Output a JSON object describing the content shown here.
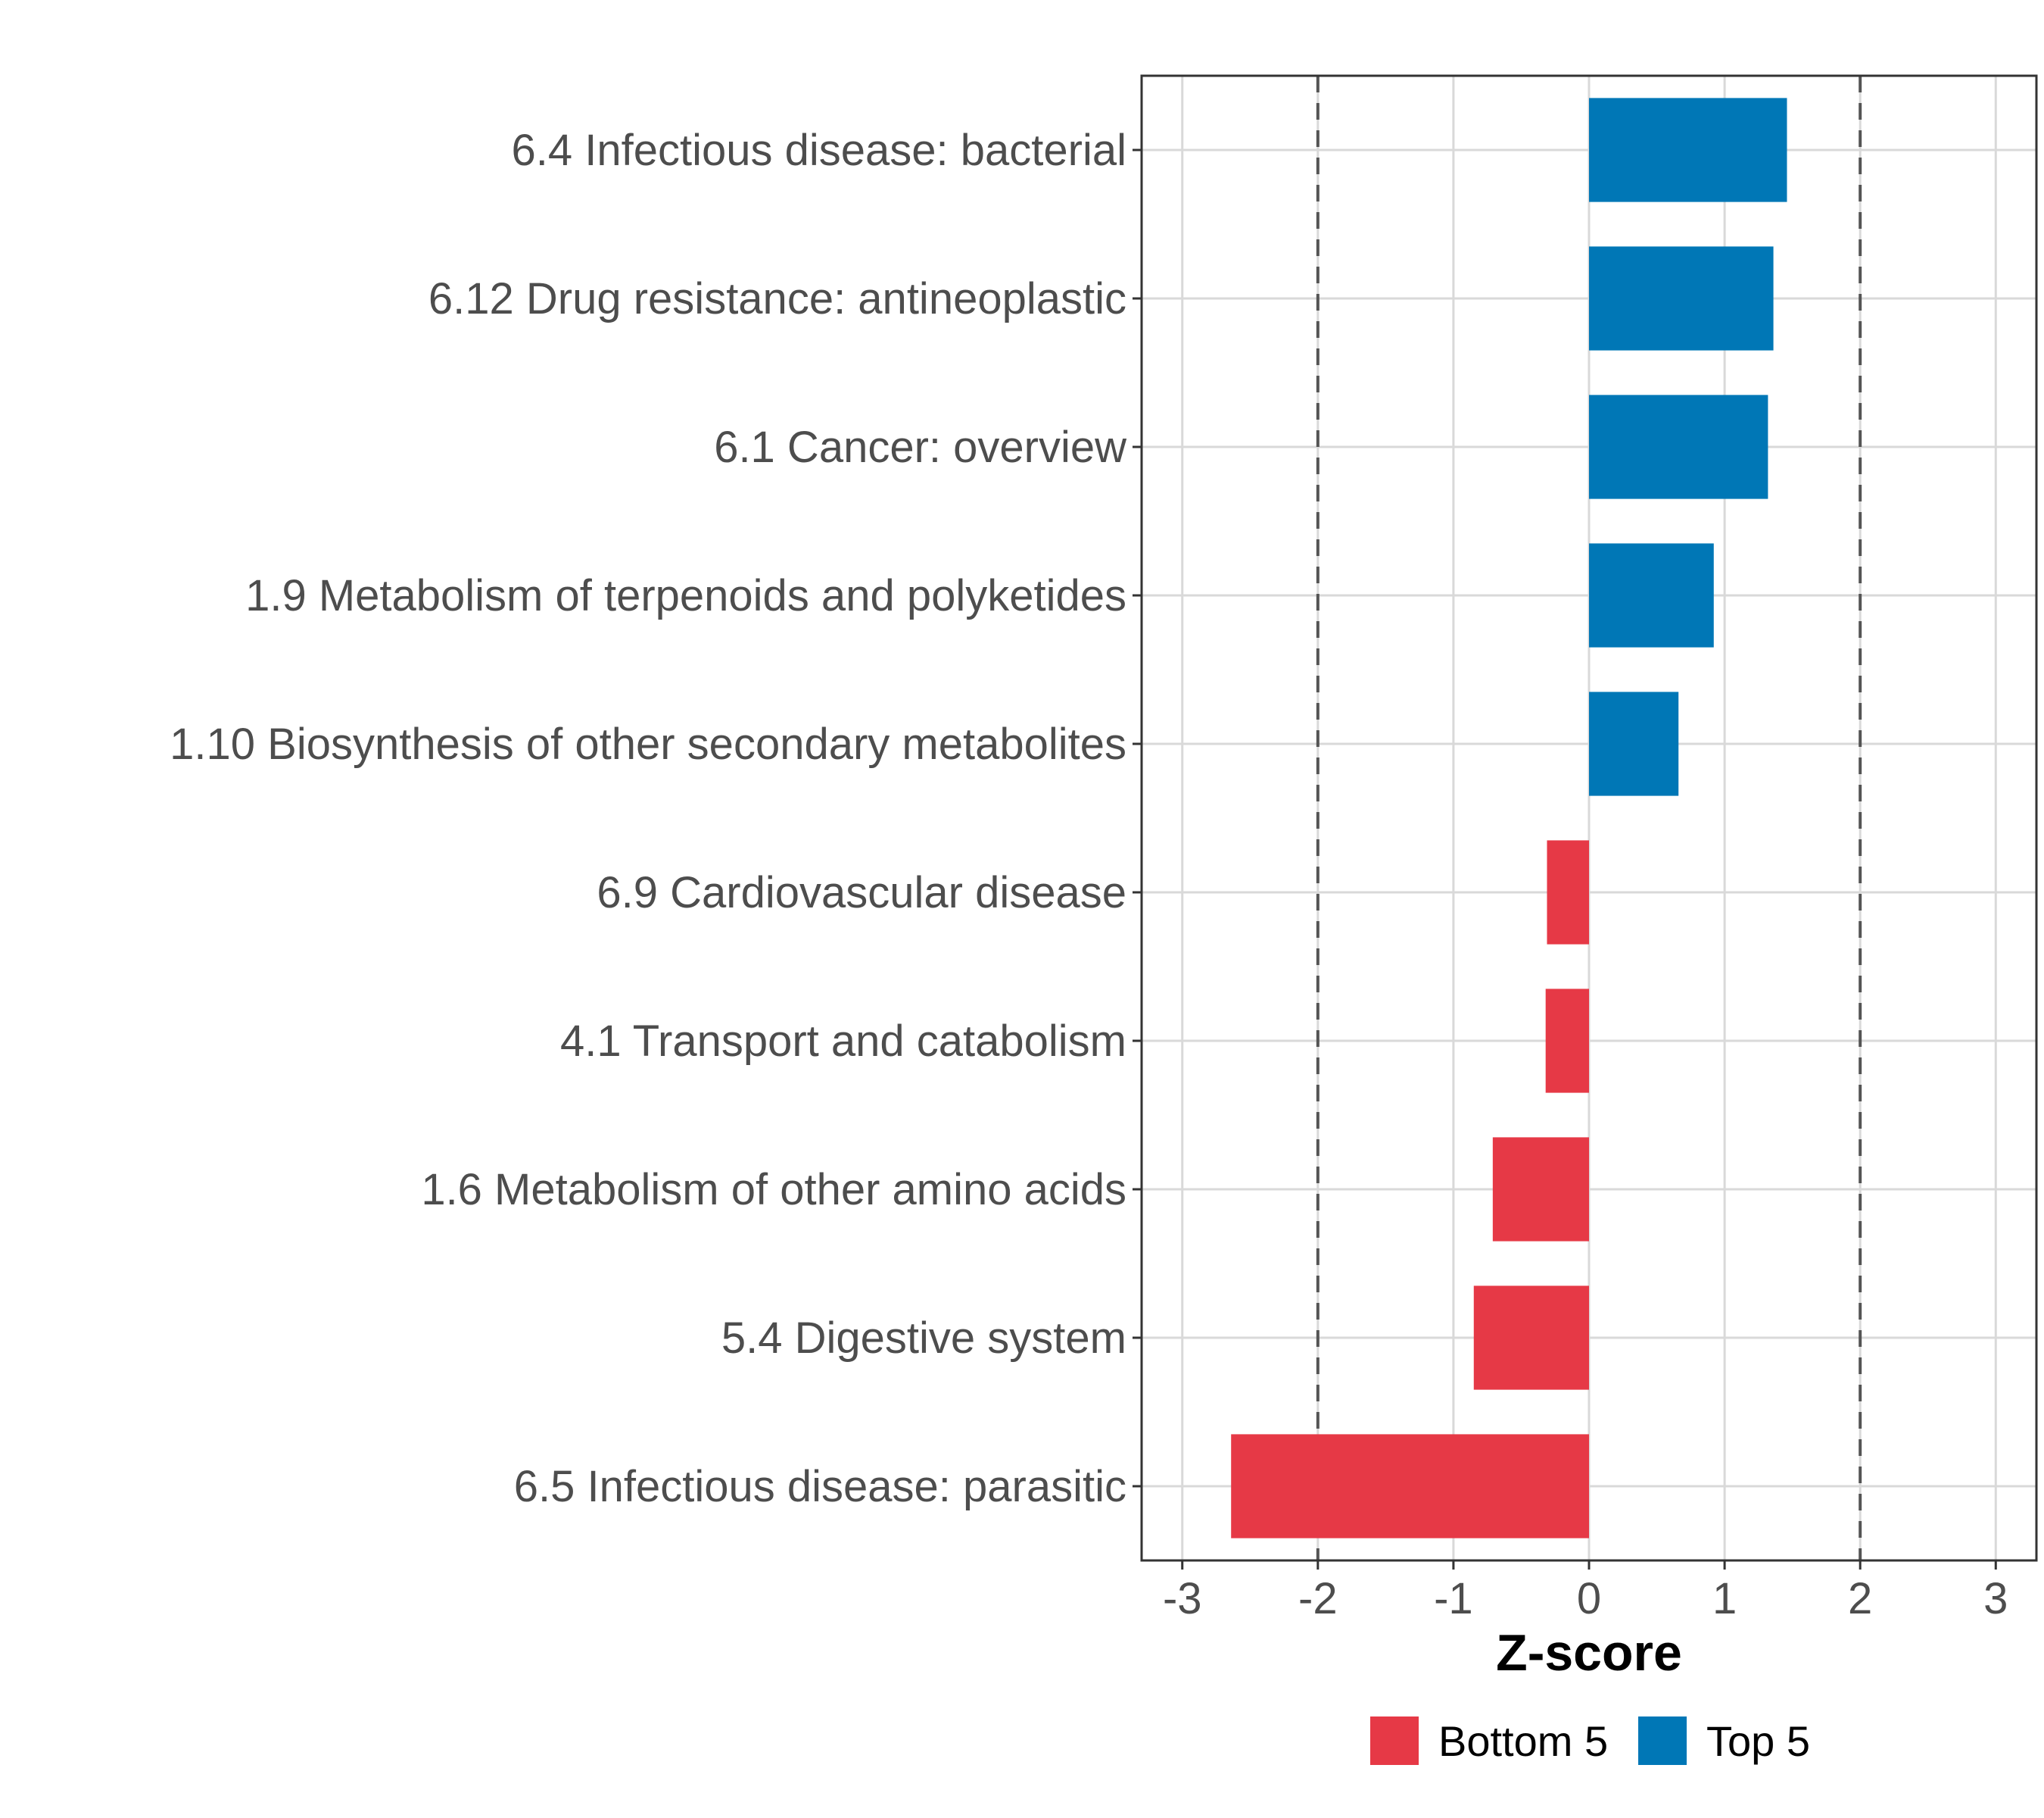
{
  "chart_data": {
    "type": "bar",
    "orientation": "horizontal",
    "title": "",
    "xlabel": "Z-score",
    "ylabel": "",
    "xlim": [
      -3.3,
      3.3
    ],
    "xticks": [
      -3,
      -2,
      -1,
      0,
      1,
      2,
      3
    ],
    "xtick_labels": [
      "-3",
      "-2",
      "-1",
      "0",
      "1",
      "2",
      "3"
    ],
    "reference_lines": [
      -2,
      2
    ],
    "grid": true,
    "legend_position": "bottom",
    "categories": [
      "6.4 Infectious disease: bacterial",
      "6.12 Drug resistance: antineoplastic",
      "6.1 Cancer: overview",
      "1.9 Metabolism of terpenoids and polyketides",
      "1.10 Biosynthesis of other secondary metabolites",
      "6.9 Cardiovascular disease",
      "4.1 Transport and catabolism",
      "1.6 Metabolism of other amino acids",
      "5.4 Digestive system",
      "6.5 Infectious disease: parasitic"
    ],
    "values": [
      1.46,
      1.36,
      1.32,
      0.92,
      0.66,
      -0.31,
      -0.32,
      -0.71,
      -0.85,
      -2.64
    ],
    "groups": [
      "Top 5",
      "Top 5",
      "Top 5",
      "Top 5",
      "Top 5",
      "Bottom 5",
      "Bottom 5",
      "Bottom 5",
      "Bottom 5",
      "Bottom 5"
    ],
    "legend": [
      {
        "name": "Bottom 5",
        "color": "#e63946"
      },
      {
        "name": "Top 5",
        "color": "#0077b6"
      }
    ]
  }
}
